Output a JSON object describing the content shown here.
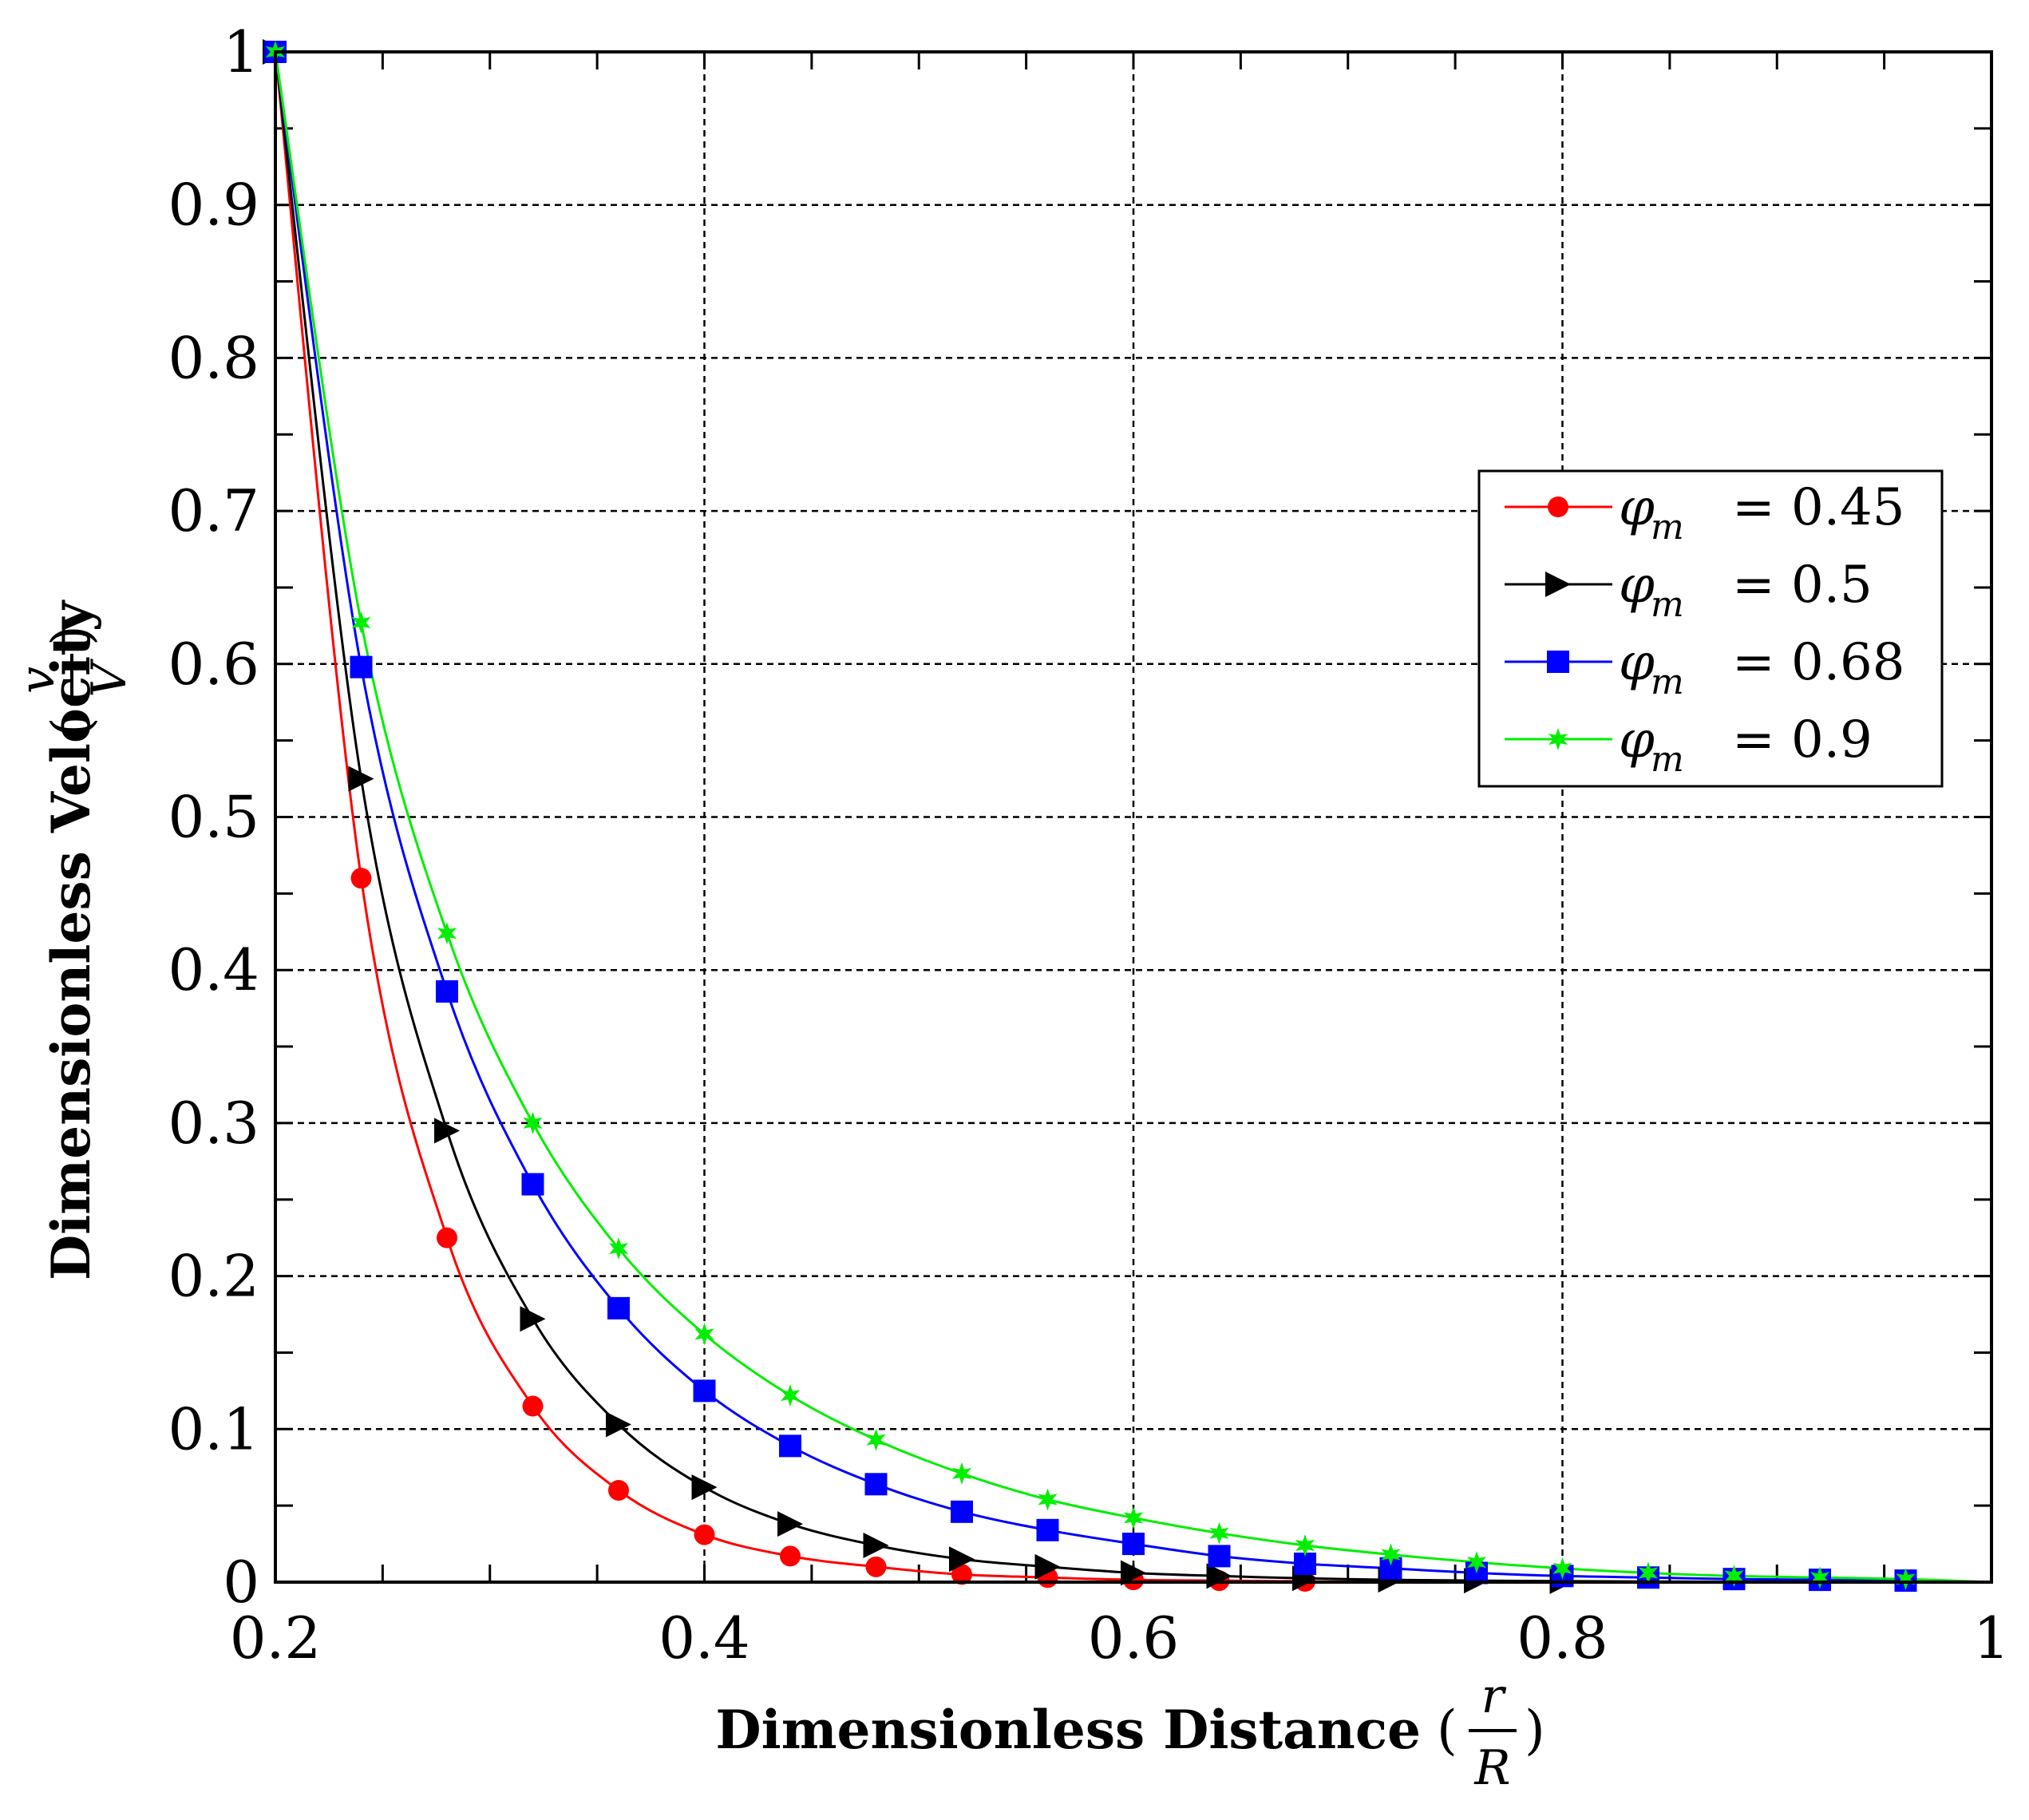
{
  "chart_data": {
    "type": "line",
    "title": "",
    "xlabel": "Dimensionless Distance",
    "xlabel_fraction": {
      "numerator": "r",
      "denominator": "R"
    },
    "ylabel": "Dimensionless Velocity",
    "ylabel_fraction": {
      "numerator": "v",
      "denominator": "V"
    },
    "xlim": [
      0.2,
      1
    ],
    "ylim": [
      0,
      1
    ],
    "grid": true,
    "legend_position": "right-upper",
    "x_ticks": [
      0.2,
      0.4,
      0.6,
      0.8,
      1
    ],
    "x_tick_labels": [
      "0.2",
      "0.4",
      "0.6",
      "0.8",
      "1"
    ],
    "y_ticks": [
      0,
      0.1,
      0.2,
      0.3,
      0.4,
      0.5,
      0.6,
      0.7,
      0.8,
      0.9,
      1
    ],
    "y_tick_labels": [
      "0",
      "0.1",
      "0.2",
      "0.3",
      "0.4",
      "0.5",
      "0.6",
      "0.7",
      "0.8",
      "0.9",
      "1"
    ],
    "x": [
      0.2,
      0.24,
      0.28,
      0.32,
      0.36,
      0.4,
      0.44,
      0.48,
      0.52,
      0.56,
      0.6,
      0.64,
      0.68,
      0.72,
      0.76,
      0.8,
      0.84,
      0.88,
      0.92,
      0.96,
      1.0
    ],
    "series": [
      {
        "name": "phi_m = 0.45",
        "legend_symbol": "φ",
        "legend_subscript": "m",
        "legend_value": "= 0.45",
        "color": "#ff0000",
        "marker": "circle",
        "marker_count": 13,
        "values": [
          1.0,
          0.46,
          0.225,
          0.115,
          0.06,
          0.031,
          0.017,
          0.01,
          0.005,
          0.003,
          0.0015,
          0.001,
          0.0005,
          0.0003,
          0.0002,
          0.0001,
          0.0,
          0.0,
          0.0,
          0.0,
          0.0
        ]
      },
      {
        "name": "phi_m = 0.5",
        "legend_symbol": "φ",
        "legend_subscript": "m",
        "legend_value": "= 0.5",
        "color": "#000000",
        "marker": "triangle-right",
        "marker_count": 16,
        "values": [
          1.0,
          0.525,
          0.295,
          0.172,
          0.103,
          0.062,
          0.038,
          0.024,
          0.015,
          0.01,
          0.006,
          0.004,
          0.0025,
          0.0015,
          0.001,
          0.0006,
          0.0004,
          0.0002,
          0.0001,
          0.0,
          0.0
        ]
      },
      {
        "name": "phi_m = 0.68",
        "legend_symbol": "φ",
        "legend_subscript": "m",
        "legend_value": "= 0.68",
        "color": "#0000ff",
        "marker": "square",
        "marker_count": 20,
        "values": [
          1.0,
          0.598,
          0.386,
          0.26,
          0.179,
          0.125,
          0.089,
          0.064,
          0.046,
          0.034,
          0.025,
          0.017,
          0.012,
          0.009,
          0.006,
          0.004,
          0.003,
          0.002,
          0.0015,
          0.001,
          0.0
        ]
      },
      {
        "name": "phi_m = 0.9",
        "legend_symbol": "φ",
        "legend_subscript": "m",
        "legend_value": "= 0.9",
        "color": "#00ee00",
        "marker": "star",
        "marker_count": 20,
        "values": [
          1.0,
          0.627,
          0.424,
          0.3,
          0.218,
          0.162,
          0.122,
          0.093,
          0.071,
          0.054,
          0.042,
          0.032,
          0.024,
          0.018,
          0.013,
          0.009,
          0.006,
          0.004,
          0.003,
          0.002,
          0.0
        ]
      }
    ]
  }
}
